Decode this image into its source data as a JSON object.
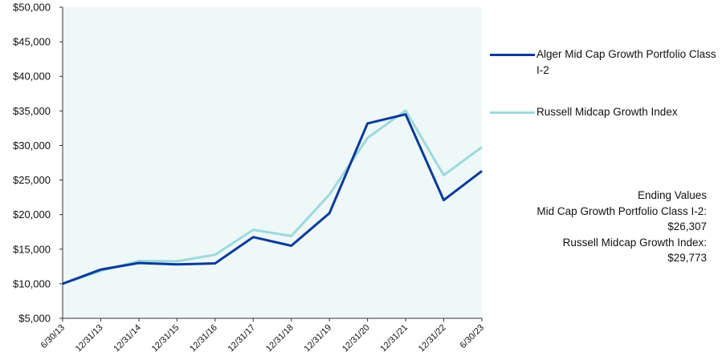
{
  "chart_data": {
    "type": "line",
    "x": [
      "6/30/13",
      "12/31/13",
      "12/31/14",
      "12/31/15",
      "12/31/16",
      "12/31/17",
      "12/31/18",
      "12/31/19",
      "12/31/20",
      "12/31/21",
      "12/31/22",
      "6/30/23"
    ],
    "series": [
      {
        "name": "Alger Mid Cap Growth Portfolio Class I-2",
        "color": "#0a3a9a",
        "values": [
          10000,
          12050,
          13000,
          12800,
          12950,
          16750,
          15500,
          20200,
          33200,
          34500,
          22100,
          26307
        ]
      },
      {
        "name": "Russell Midcap Growth Index",
        "color": "#9ed9dc",
        "values": [
          10000,
          11850,
          13300,
          13250,
          14200,
          17800,
          16900,
          22900,
          31100,
          35050,
          25700,
          29773
        ]
      }
    ],
    "y_ticks": [
      "$5,000",
      "$10,000",
      "$15,000",
      "$20,000",
      "$25,000",
      "$30,000",
      "$35,000",
      "$40,000",
      "$45,000",
      "$50,000"
    ],
    "ylim": [
      5000,
      50000
    ],
    "plot_background": "#eef8f8",
    "grid": false,
    "legend_position": "right"
  },
  "ending_values": {
    "heading": "Ending Values",
    "line1_label": "Mid Cap Growth Portfolio Class I-2:",
    "line1_value": "$26,307",
    "line2_label": "Russell Midcap Growth Index:",
    "line2_value": "$29,773"
  }
}
